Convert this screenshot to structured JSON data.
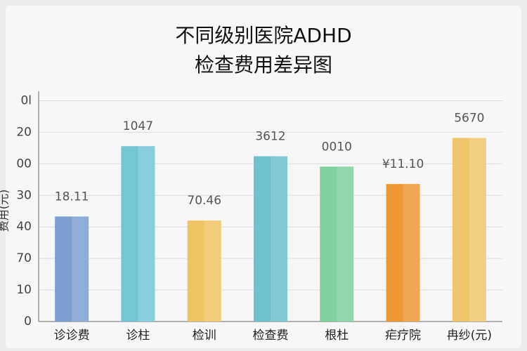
{
  "chart_data": {
    "type": "bar",
    "title_lines": [
      "不同级别医院ADHD",
      "检查费用差异图"
    ],
    "y_label": "费用(元)",
    "categories": [
      "诊诊费",
      "诊柱",
      "检训",
      "检查费",
      "根杜",
      "疟疗院",
      "冉纱(元)"
    ],
    "values": [
      33.3,
      55.6,
      32,
      52.4,
      49.1,
      43.6,
      58.2
    ],
    "annotations": [
      "18.11",
      "1047",
      "70.46",
      "3612",
      "0010",
      "¥11.10",
      "5670"
    ],
    "colors": [
      "#7b9fd1",
      "#74c6d6",
      "#eec464",
      "#6fc1cd",
      "#7fcf9f",
      "#ee9833",
      "#f0c66c"
    ],
    "ylim": [
      0,
      73
    ],
    "yticks": [
      0,
      10,
      {
        "value": 20,
        "label": "70"
      },
      {
        "value": 30,
        "label": "40"
      },
      {
        "value": 40,
        "label": "30"
      },
      {
        "value": 50,
        "label": "00"
      },
      {
        "value": 60,
        "label": "20"
      },
      {
        "value": 70,
        "label": "0l"
      }
    ],
    "grid": true
  }
}
